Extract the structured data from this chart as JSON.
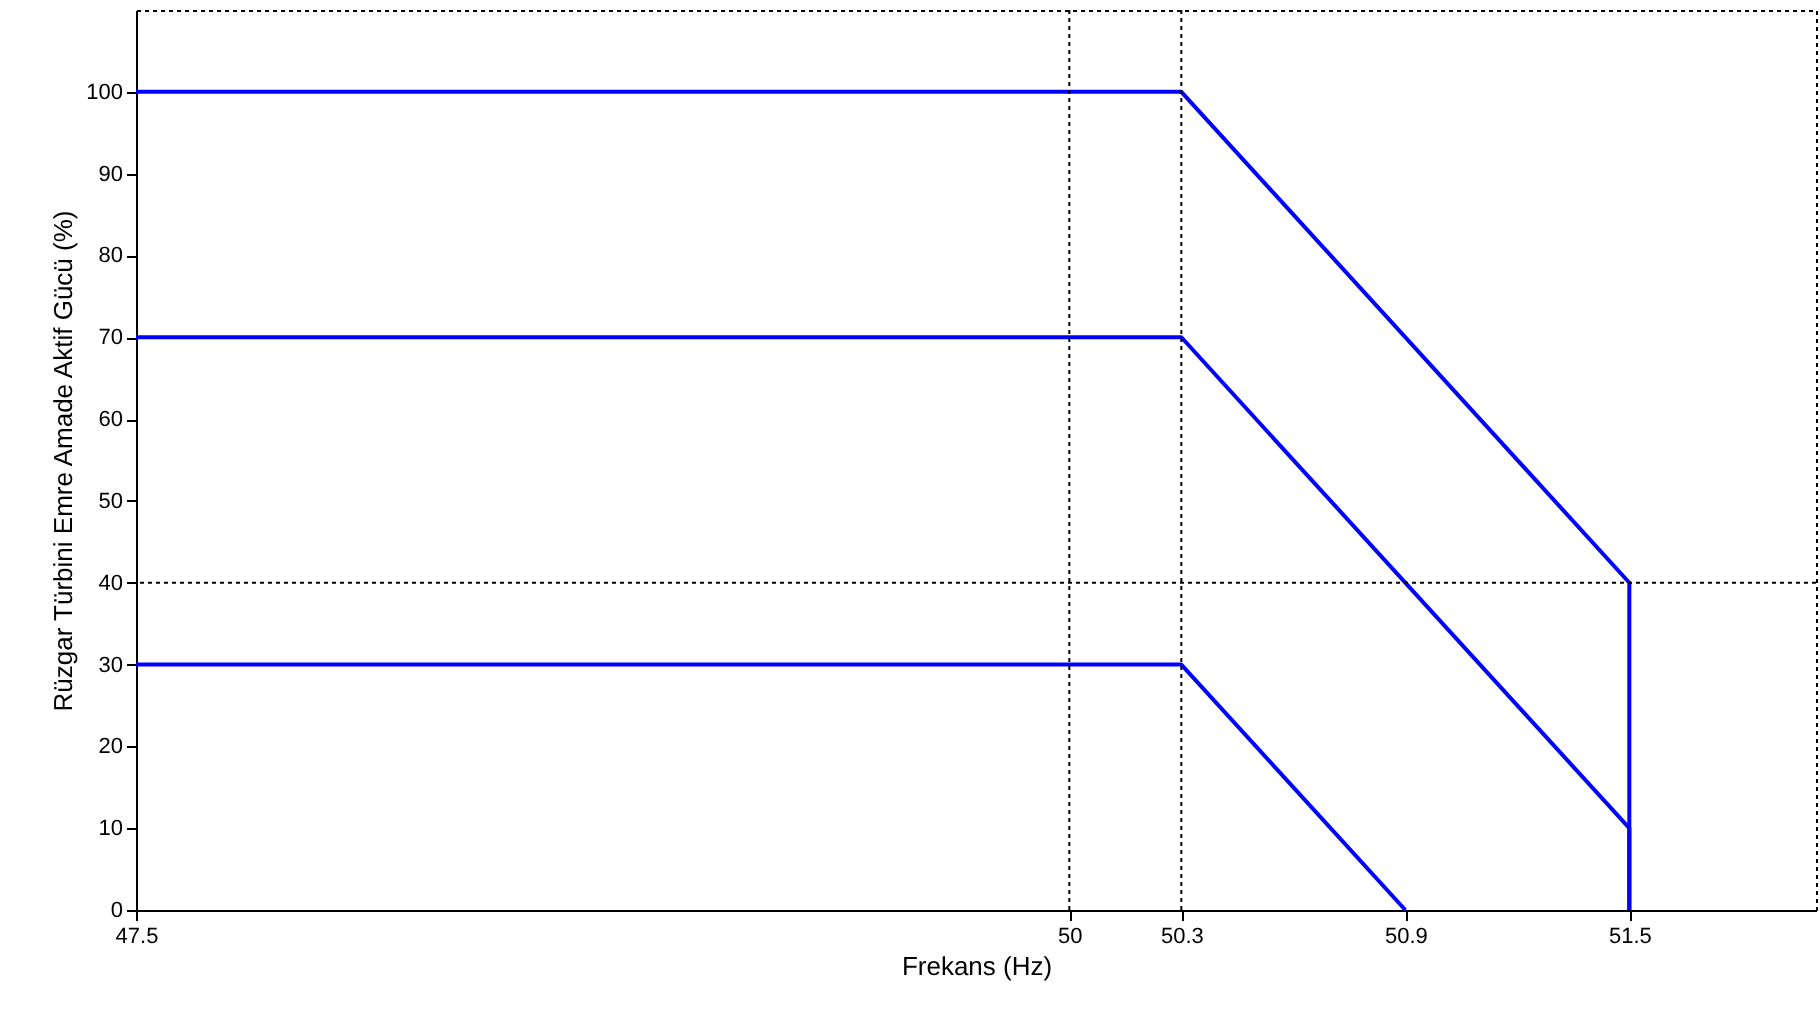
{
  "chart_data": {
    "type": "line",
    "xlabel": "Frekans (Hz)",
    "ylabel": "Rüzgar Türbini Emre Amade Aktif Gücü (%)",
    "xlim": [
      47.5,
      52
    ],
    "xticks": [
      47.5,
      50,
      50.3,
      50.9,
      51.5
    ],
    "ylim": [
      0,
      110
    ],
    "yticks": [
      0,
      10,
      20,
      30,
      40,
      50,
      60,
      70,
      80,
      90,
      100
    ],
    "grid": false,
    "series": [
      {
        "color": "#0000ff",
        "x": [
          47.5,
          50.3,
          51.5,
          51.5
        ],
        "values": [
          100,
          100,
          40,
          0
        ]
      },
      {
        "color": "#0000ff",
        "x": [
          47.5,
          50.3,
          51.5,
          51.5
        ],
        "values": [
          70,
          70,
          10,
          0
        ]
      },
      {
        "color": "#0000ff",
        "x": [
          47.5,
          50.3,
          50.9
        ],
        "values": [
          30,
          30,
          0
        ]
      }
    ],
    "ref_lines": [
      {
        "axis": "x",
        "value": 50,
        "color": "#000000",
        "line_style": "dotted"
      },
      {
        "axis": "x",
        "value": 50.3,
        "color": "#000000",
        "line_style": "dotted"
      },
      {
        "axis": "y",
        "value": 40,
        "color": "#000000",
        "line_style": "dotted"
      }
    ]
  }
}
